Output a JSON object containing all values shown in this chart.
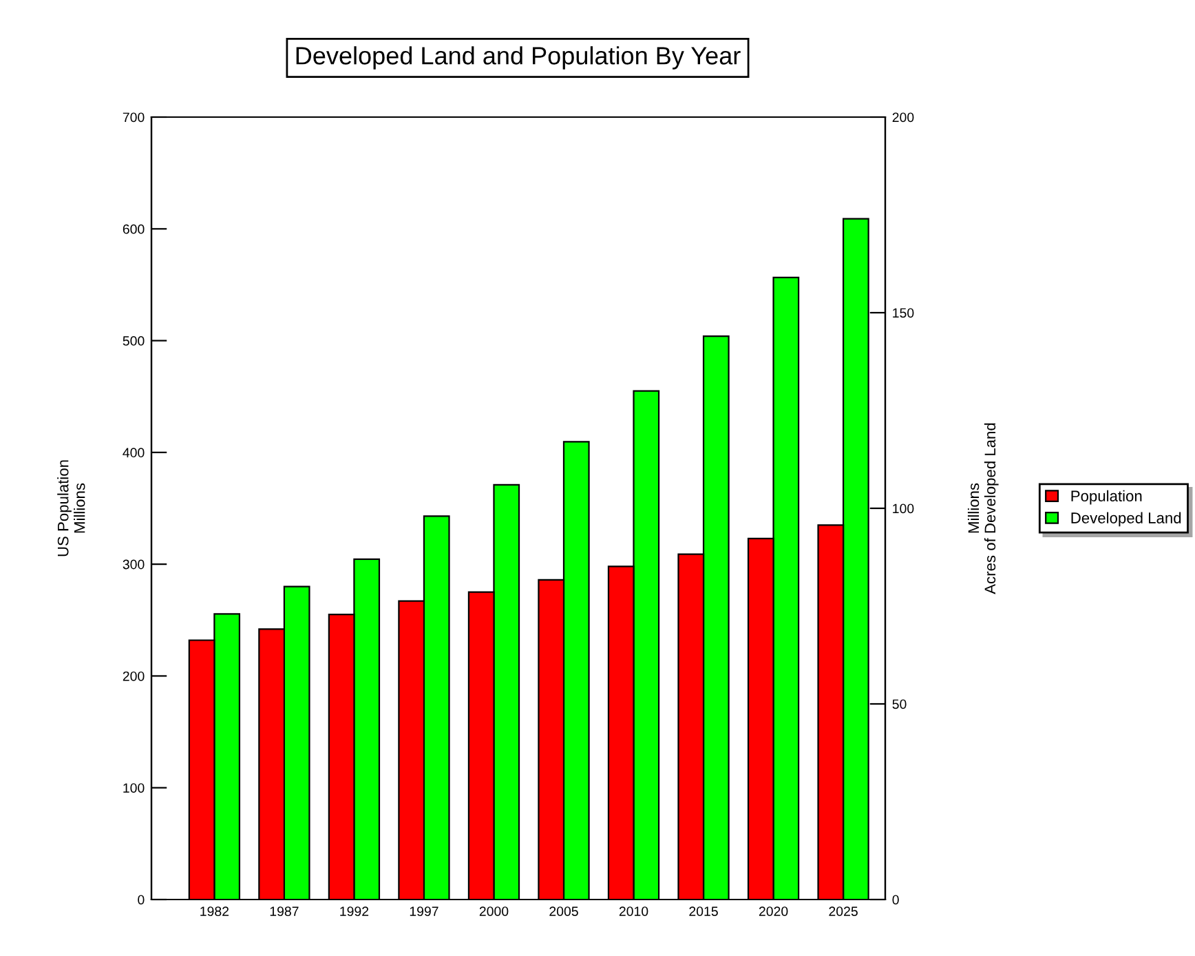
{
  "chart_data": {
    "type": "bar",
    "title": "Developed Land and Population By Year",
    "categories": [
      "1982",
      "1987",
      "1992",
      "1997",
      "2000",
      "2005",
      "2010",
      "2015",
      "2020",
      "2025"
    ],
    "series": [
      {
        "name": "Population",
        "color": "#ff0000",
        "values": [
          232,
          242,
          255,
          267,
          275,
          286,
          298,
          309,
          323,
          335
        ]
      },
      {
        "name": "Developed Land",
        "color": "#00ff00",
        "axis": "y2",
        "values": [
          73,
          80,
          87,
          98,
          106,
          117,
          130,
          144,
          159,
          174
        ]
      }
    ],
    "ylabel": "US Population\nMillions",
    "y2label": "Millions\nAcres of Developed Land",
    "ylim": [
      0,
      700
    ],
    "yticks": [
      0,
      100,
      200,
      300,
      400,
      500,
      600,
      700
    ],
    "y2lim": [
      0,
      200
    ],
    "y2ticks": [
      0,
      50,
      100,
      150,
      200
    ],
    "grid": false,
    "legend": "right"
  }
}
